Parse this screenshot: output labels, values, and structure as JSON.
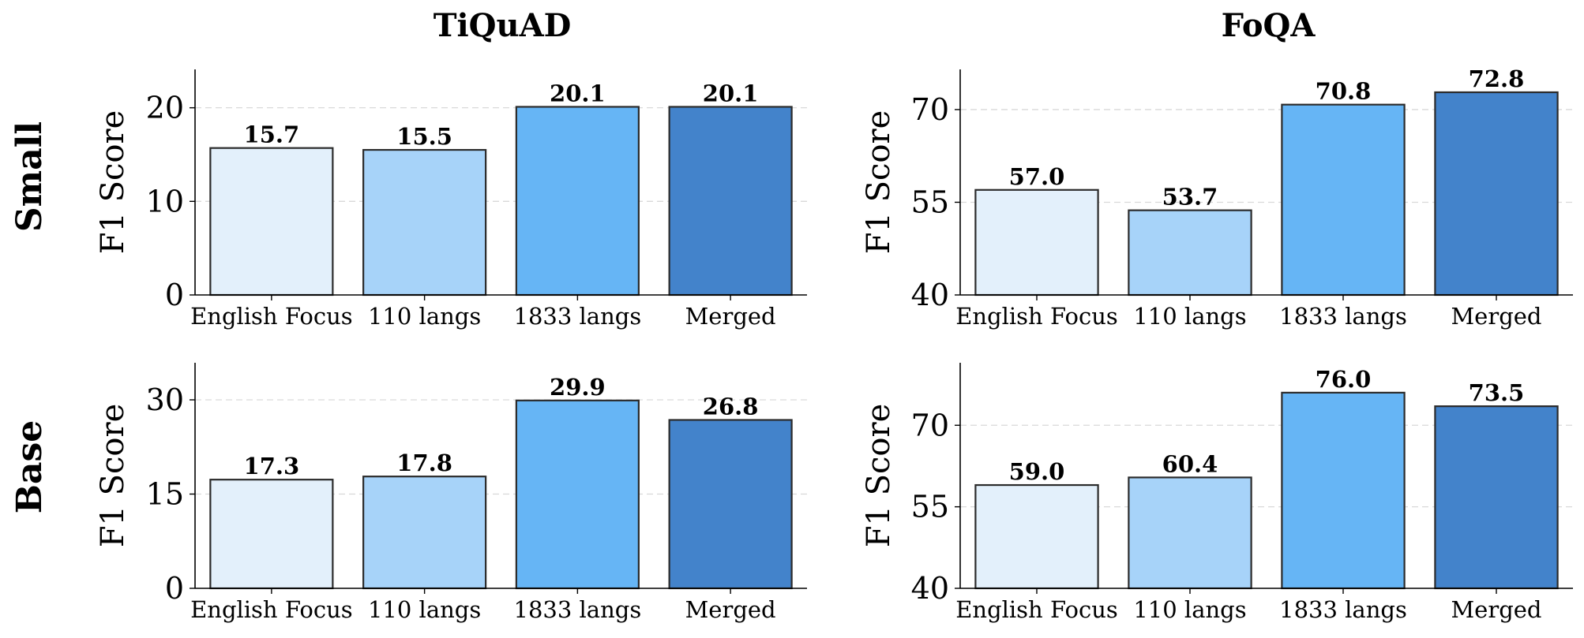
{
  "colors": {
    "bar_fills": [
      "#e3f0fb",
      "#a7d3f9",
      "#66b5f5",
      "#4383cb"
    ],
    "bar_edge": "#2b2b2b",
    "grid": "#d9d9d9"
  },
  "column_titles": [
    "TiQuAD",
    "FoQA"
  ],
  "row_labels": [
    "Small",
    "Base"
  ],
  "chart_data": [
    {
      "type": "bar",
      "panel": "Small / TiQuAD",
      "title": "",
      "xlabel": "",
      "ylabel": "F1 Score",
      "categories": [
        "English Focus",
        "110 langs",
        "1833 langs",
        "Merged"
      ],
      "values": [
        15.7,
        15.5,
        20.1,
        20.1
      ],
      "value_labels": [
        "15.7",
        "15.5",
        "20.1",
        "20.1"
      ],
      "ylim": [
        0,
        24.1
      ],
      "yticks": [
        0,
        10,
        20
      ],
      "ytick_labels": [
        "0",
        "10",
        "20"
      ],
      "grid": "y-dashed",
      "legend": "none"
    },
    {
      "type": "bar",
      "panel": "Small / FoQA",
      "title": "",
      "xlabel": "",
      "ylabel": "F1 Score",
      "categories": [
        "English Focus",
        "110 langs",
        "1833 langs",
        "Merged"
      ],
      "values": [
        57.0,
        53.7,
        70.8,
        72.8
      ],
      "value_labels": [
        "57.0",
        "53.7",
        "70.8",
        "72.8"
      ],
      "ylim": [
        40,
        76.5
      ],
      "yticks": [
        40,
        55,
        70
      ],
      "ytick_labels": [
        "40",
        "55",
        "70"
      ],
      "grid": "y-dashed",
      "legend": "none"
    },
    {
      "type": "bar",
      "panel": "Base / TiQuAD",
      "title": "",
      "xlabel": "",
      "ylabel": "F1 Score",
      "categories": [
        "English Focus",
        "110 langs",
        "1833 langs",
        "Merged"
      ],
      "values": [
        17.3,
        17.8,
        29.9,
        26.8
      ],
      "value_labels": [
        "17.3",
        "17.8",
        "29.9",
        "26.8"
      ],
      "ylim": [
        0,
        35.9
      ],
      "yticks": [
        0,
        15,
        30
      ],
      "ytick_labels": [
        "0",
        "15",
        "30"
      ],
      "grid": "y-dashed",
      "legend": "none"
    },
    {
      "type": "bar",
      "panel": "Base / FoQA",
      "title": "",
      "xlabel": "",
      "ylabel": "F1 Score",
      "categories": [
        "English Focus",
        "110 langs",
        "1833 langs",
        "Merged"
      ],
      "values": [
        59.0,
        60.4,
        76.0,
        73.5
      ],
      "value_labels": [
        "59.0",
        "60.4",
        "76.0",
        "73.5"
      ],
      "ylim": [
        40,
        81.5
      ],
      "yticks": [
        40,
        55,
        70
      ],
      "ytick_labels": [
        "40",
        "55",
        "70"
      ],
      "grid": "y-dashed",
      "legend": "none"
    }
  ]
}
